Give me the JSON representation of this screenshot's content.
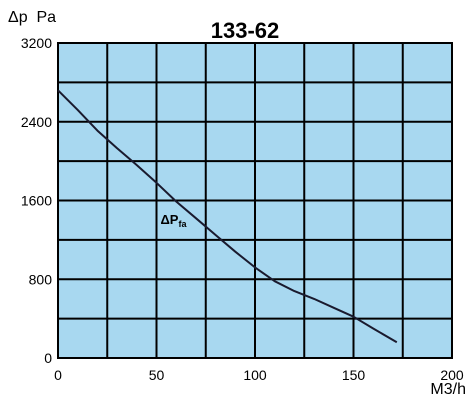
{
  "chart_data": {
    "type": "line",
    "title": "133-62",
    "ylabel": "Δp  Pa",
    "xlabel": "M3/h",
    "xlim": [
      0,
      200
    ],
    "ylim": [
      0,
      3200
    ],
    "x_ticks": [
      "0",
      "50",
      "100",
      "150",
      "200"
    ],
    "y_ticks": [
      "0",
      "800",
      "1600",
      "2400",
      "3200"
    ],
    "x_grid_step": 25,
    "y_grid_step": 400,
    "grid": true,
    "plot_background": "#a8d8f0",
    "grid_color": "#000000",
    "line_color": "#1a1a2e",
    "series": [
      {
        "annotation": {
          "main": "ΔP",
          "sub": "fa",
          "x": 52,
          "y": 1360
        },
        "x": [
          0,
          10,
          20,
          30,
          40,
          50,
          60,
          70,
          80,
          90,
          100,
          110,
          120,
          130,
          140,
          150,
          160,
          172
        ],
        "y": [
          2720,
          2520,
          2310,
          2130,
          1960,
          1780,
          1590,
          1420,
          1250,
          1080,
          920,
          780,
          680,
          600,
          510,
          420,
          300,
          160
        ]
      }
    ]
  }
}
